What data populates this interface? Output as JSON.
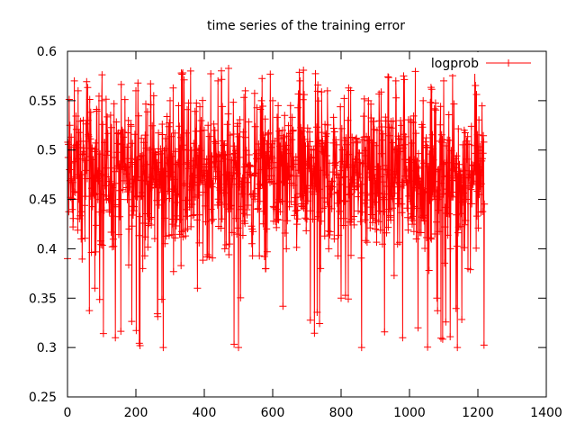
{
  "chart_data": {
    "type": "line",
    "title": "time series of the training error",
    "xlabel": "",
    "ylabel": "",
    "xlim": [
      0,
      1400
    ],
    "ylim": [
      0.25,
      0.6
    ],
    "xticks": [
      0,
      200,
      400,
      600,
      800,
      1000,
      1200,
      1400
    ],
    "yticks": [
      0.25,
      0.3,
      0.35,
      0.4,
      0.45,
      0.5,
      0.55,
      0.6
    ],
    "xtick_labels": [
      "0",
      "200",
      "400",
      "600",
      "800",
      "1000",
      "1200",
      "1400"
    ],
    "ytick_labels": [
      "0.25",
      "0.3",
      "0.35",
      "0.4",
      "0.45",
      "0.5",
      "0.55",
      "0.6"
    ],
    "grid": false,
    "legend_position": "top-right",
    "series": [
      {
        "name": "logprob",
        "color": "#ff0000",
        "marker": "plus",
        "x_range": [
          0,
          1220
        ],
        "n_points": 1220,
        "mean": 0.475,
        "typical_range": [
          0.38,
          0.57
        ],
        "min": 0.298,
        "max": 0.583,
        "values_sampled_every_20": [
          0.39,
          0.57,
          0.41,
          0.53,
          0.36,
          0.55,
          0.45,
          0.31,
          0.52,
          0.42,
          0.56,
          0.38,
          0.5,
          0.47,
          0.3,
          0.55,
          0.43,
          0.5,
          0.58,
          0.36,
          0.52,
          0.44,
          0.57,
          0.4,
          0.49,
          0.3,
          0.56,
          0.42,
          0.5,
          0.38,
          0.55,
          0.45,
          0.4,
          0.52,
          0.57,
          0.43,
          0.5,
          0.38,
          0.56,
          0.41,
          0.35,
          0.53,
          0.46,
          0.3,
          0.55,
          0.42,
          0.51,
          0.44,
          0.57,
          0.31,
          0.49,
          0.41,
          0.55,
          0.45,
          0.35,
          0.57,
          0.4,
          0.3,
          0.52,
          0.46,
          0.48
        ]
      }
    ]
  }
}
